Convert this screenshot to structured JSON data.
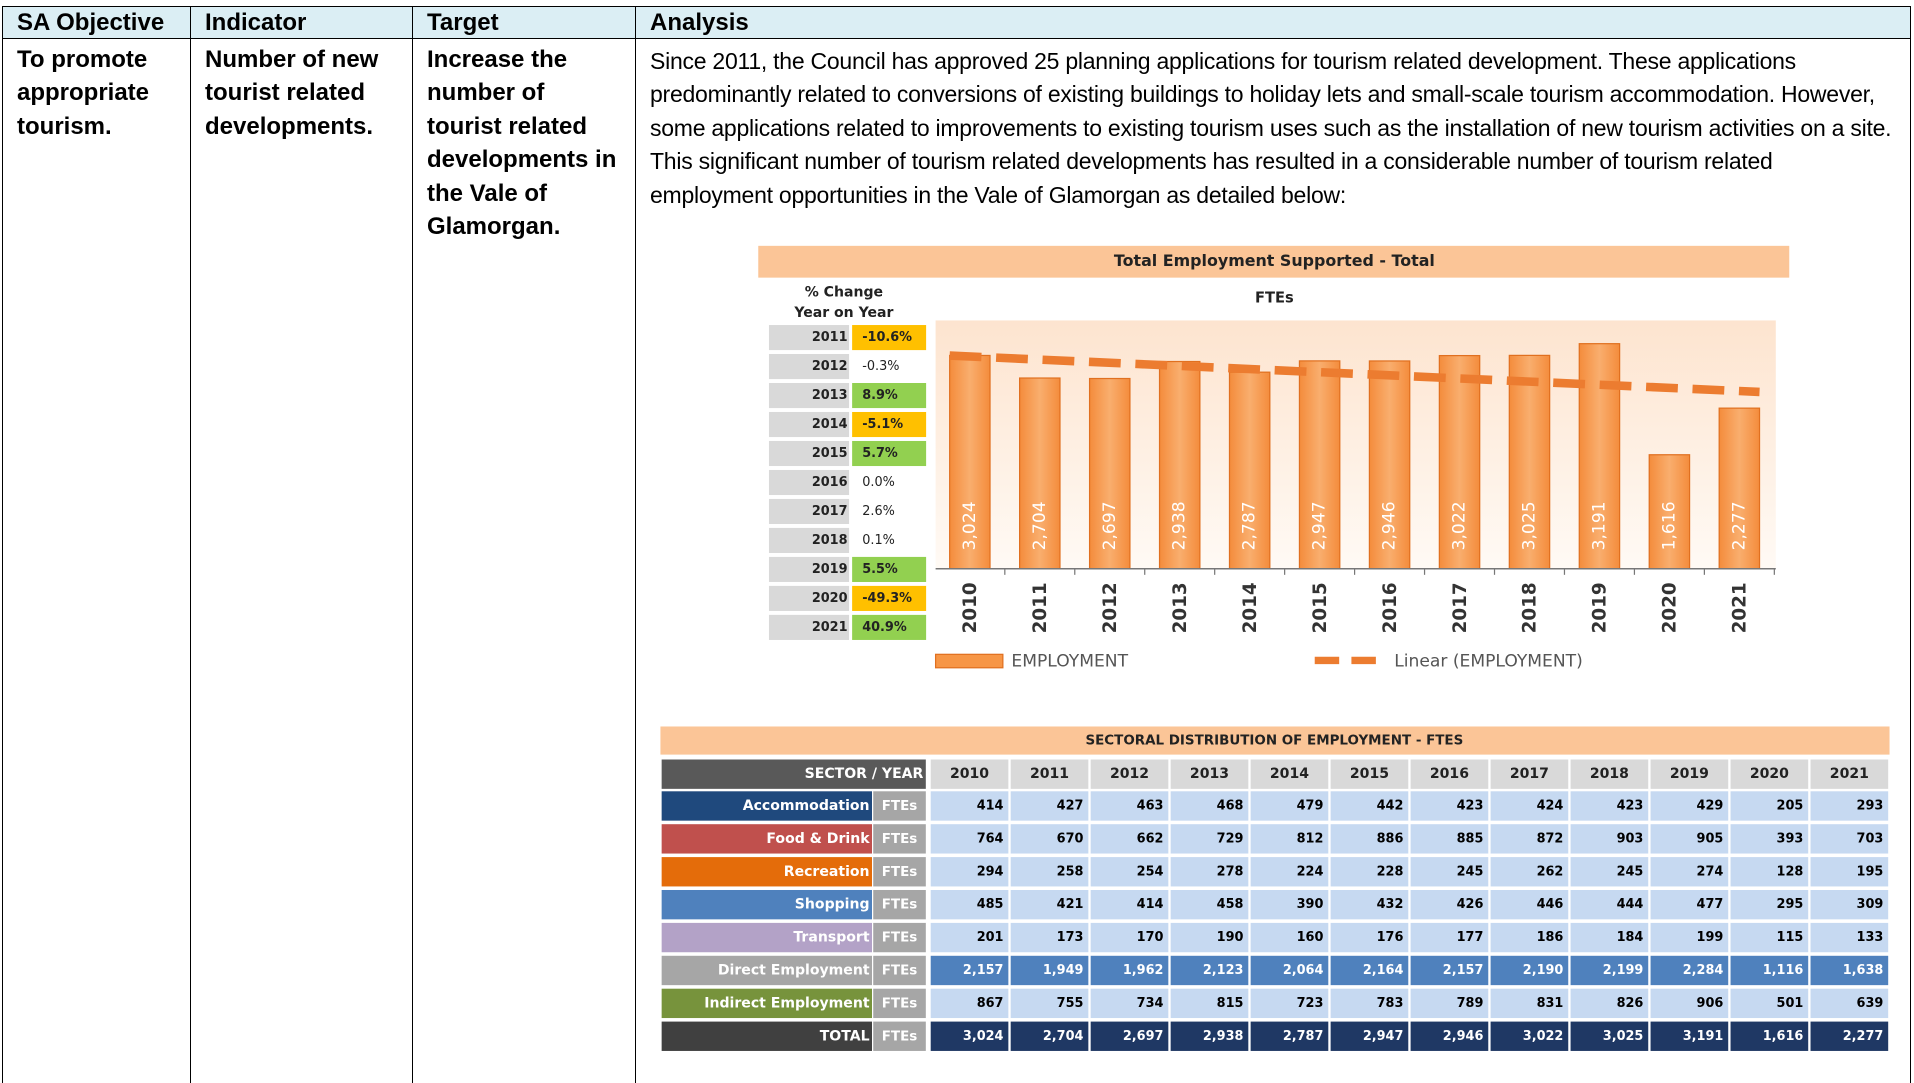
{
  "table": {
    "header": [
      "SA Objective",
      "Indicator",
      "Target",
      "Analysis"
    ],
    "rows": [
      [
        "To promote appropriate tourism.",
        "Number of new tourist related developments.",
        "Increase the number of tourist related developments in the Vale of Glamorgan.",
        "Since 2011, the Council has approved 25 planning applications for tourism related development. These applications predominantly related to conversions of existing buildings to holiday lets and small-scale tourism accommodation. However, some applications related to improvements to existing tourism uses such as the installation of new tourism activities on a site. This significant number of tourism related developments has resulted in a considerable number of tourism related employment opportunities in the Vale of Glamorgan as detailed below:"
      ]
    ]
  },
  "chart_data": {
    "type": "bar",
    "title": "Total Employment Supported - Total",
    "subtitle": "FTEs",
    "series_name": "EMPLOYMENT",
    "trend_name": "Linear (EMPLOYMENT)",
    "color": "#f79646",
    "trend_color": "#ec7c30",
    "categories": [
      "2010",
      "2011",
      "2012",
      "2013",
      "2014",
      "2015",
      "2016",
      "2017",
      "2018",
      "2019",
      "2020",
      "2021"
    ],
    "values": [
      3024,
      2704,
      2697,
      2938,
      2787,
      2947,
      2946,
      3022,
      3025,
      3191,
      1616,
      2277
    ],
    "value_labels": [
      "3,024",
      "2,704",
      "2,697",
      "2,938",
      "2,787",
      "2,947",
      "2,946",
      "3,022",
      "3,025",
      "3,191",
      "1,616",
      "2,277"
    ],
    "change_table": {
      "header": [
        "% Change",
        "Year on Year"
      ],
      "years": [
        "2011",
        "2012",
        "2013",
        "2014",
        "2015",
        "2016",
        "2017",
        "2018",
        "2019",
        "2020",
        "2021"
      ],
      "labels": [
        "-10.6%",
        "-0.3%",
        "8.9%",
        "-5.1%",
        "5.7%",
        "0.0%",
        "2.6%",
        "0.1%",
        "5.5%",
        "-49.3%",
        "40.9%"
      ],
      "colors": [
        "#ffc000",
        null,
        "#92d050",
        "#ffc000",
        "#92d050",
        null,
        null,
        null,
        "#92d050",
        "#ffc000",
        "#92d050"
      ]
    }
  },
  "sector_table": {
    "title": "SECTORAL DISTRIBUTION OF EMPLOYMENT - FTES",
    "corner": "SECTOR / YEAR",
    "years": [
      "2010",
      "2011",
      "2012",
      "2013",
      "2014",
      "2015",
      "2016",
      "2017",
      "2018",
      "2019",
      "2020",
      "2021"
    ],
    "rows": [
      {
        "name": "Accommodation",
        "unit": "FTEs",
        "color": "#1f497d",
        "cell_color": "#c6d9f1",
        "text_color": "#000000",
        "values": [
          "414",
          "427",
          "463",
          "468",
          "479",
          "442",
          "423",
          "424",
          "423",
          "429",
          "205",
          "293"
        ]
      },
      {
        "name": "Food & Drink",
        "unit": "FTEs",
        "color": "#c0504d",
        "cell_color": "#c6d9f1",
        "text_color": "#000000",
        "values": [
          "764",
          "670",
          "662",
          "729",
          "812",
          "886",
          "885",
          "872",
          "903",
          "905",
          "393",
          "703"
        ]
      },
      {
        "name": "Recreation",
        "unit": "FTEs",
        "color": "#e46c0a",
        "cell_color": "#c6d9f1",
        "text_color": "#000000",
        "values": [
          "294",
          "258",
          "254",
          "278",
          "224",
          "228",
          "245",
          "262",
          "245",
          "274",
          "128",
          "195"
        ]
      },
      {
        "name": "Shopping",
        "unit": "FTEs",
        "color": "#4f81bd",
        "cell_color": "#c6d9f1",
        "text_color": "#000000",
        "values": [
          "485",
          "421",
          "414",
          "458",
          "390",
          "432",
          "426",
          "446",
          "444",
          "477",
          "295",
          "309"
        ]
      },
      {
        "name": "Transport",
        "unit": "FTEs",
        "color": "#b3a2c7",
        "cell_color": "#c6d9f1",
        "text_color": "#000000",
        "values": [
          "201",
          "173",
          "170",
          "190",
          "160",
          "176",
          "177",
          "186",
          "184",
          "199",
          "115",
          "133"
        ]
      },
      {
        "name": "Direct Employment",
        "unit": "FTEs",
        "color": "#a6a6a6",
        "cell_color": "#4f81bd",
        "text_color": "#ffffff",
        "values": [
          "2,157",
          "1,949",
          "1,962",
          "2,123",
          "2,064",
          "2,164",
          "2,157",
          "2,190",
          "2,199",
          "2,284",
          "1,116",
          "1,638"
        ]
      },
      {
        "name": "Indirect Employment",
        "unit": "FTEs",
        "color": "#77933c",
        "cell_color": "#c6d9f1",
        "text_color": "#000000",
        "values": [
          "867",
          "755",
          "734",
          "815",
          "723",
          "783",
          "789",
          "831",
          "826",
          "906",
          "501",
          "639"
        ]
      },
      {
        "name": "TOTAL",
        "unit": "FTEs",
        "color": "#404040",
        "cell_color": "#1f3864",
        "text_color": "#ffffff",
        "values": [
          "3,024",
          "2,704",
          "2,697",
          "2,938",
          "2,787",
          "2,947",
          "2,946",
          "3,022",
          "3,025",
          "3,191",
          "1,616",
          "2,277"
        ]
      }
    ]
  }
}
